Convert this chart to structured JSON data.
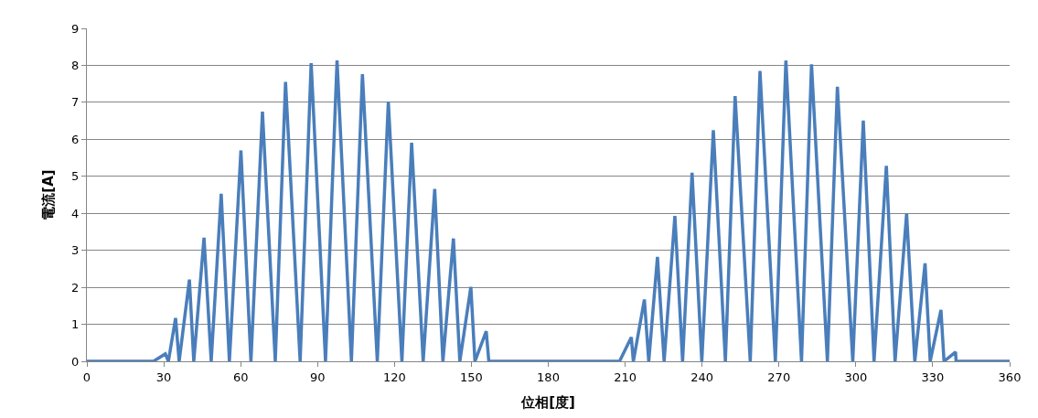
{
  "chart_data": {
    "type": "line",
    "xlabel": "位相[度]",
    "ylabel": "電流[A]",
    "x": [
      0,
      26,
      30.6,
      31.8,
      34.6,
      36.0,
      40.0,
      41.7,
      45.7,
      48.5,
      52.4,
      55.6,
      60.1,
      64.0,
      68.5,
      73.5,
      77.5,
      83.2,
      87.5,
      93.1,
      97.6,
      103.2,
      107.5,
      113.3,
      117.6,
      122.9,
      126.7,
      131.2,
      135.7,
      138.9,
      143.0,
      145.5,
      149.8,
      151.4,
      155.8,
      156.8,
      207.8,
      212.4,
      213.2,
      217.5,
      219.2,
      222.6,
      225.2,
      229.4,
      232.4,
      236.1,
      239.9,
      244.4,
      249.1,
      252.9,
      258.8,
      262.6,
      268.6,
      272.7,
      278.8,
      282.7,
      288.9,
      292.8,
      298.8,
      302.9,
      307.1,
      311.9,
      315.3,
      319.8,
      323.0,
      327.0,
      329.0,
      333.2,
      334.4,
      338.9,
      339.1,
      360
    ],
    "series": [
      {
        "color": "#4a7ebb",
        "values": [
          0,
          0,
          0.2,
          0,
          1.17,
          0,
          2.21,
          0,
          3.34,
          0,
          4.53,
          0,
          5.7,
          0,
          6.75,
          0,
          7.55,
          0,
          8.06,
          0,
          8.13,
          0,
          7.76,
          0,
          7.02,
          0,
          5.91,
          0,
          4.66,
          0,
          3.32,
          0,
          2.01,
          0,
          0.81,
          0,
          0,
          0.65,
          0,
          1.67,
          0,
          2.82,
          0,
          3.93,
          0,
          5.1,
          0,
          6.25,
          0,
          7.17,
          0,
          7.85,
          0,
          8.13,
          0,
          8.03,
          0,
          7.42,
          0,
          6.51,
          0,
          5.28,
          0,
          3.99,
          0,
          2.65,
          0,
          1.39,
          0,
          0.25,
          0,
          0
        ]
      }
    ],
    "xlim": [
      0,
      360
    ],
    "xticks": [
      0,
      30,
      60,
      90,
      120,
      150,
      180,
      210,
      240,
      270,
      300,
      330,
      360
    ],
    "ylim": [
      0,
      9
    ],
    "yticks": [
      0,
      1,
      2,
      3,
      4,
      5,
      6,
      7,
      8,
      9
    ],
    "grid": "y",
    "legend": false,
    "marker": "none",
    "line_style": "solid"
  }
}
